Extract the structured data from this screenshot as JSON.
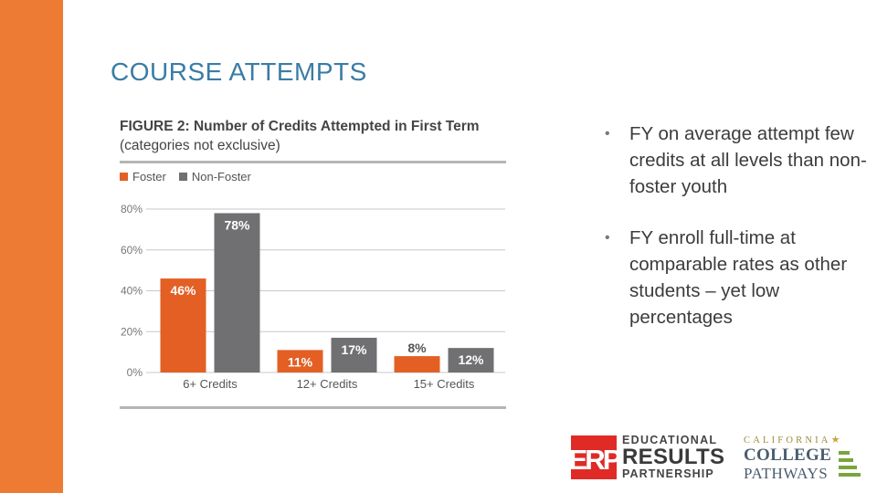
{
  "slide": {
    "title": "COURSE ATTEMPTS",
    "bullets": [
      "FY on average attempt few credits at all levels than non-foster youth",
      "FY enroll full-time at comparable rates as other students – yet low percentages"
    ]
  },
  "colors": {
    "accent_bar": "#ee7b34",
    "foster": "#e35f24",
    "non_foster": "#707073",
    "title": "#3a7ca5"
  },
  "chart_data": {
    "type": "bar",
    "title": "FIGURE 2: Number of Credits Attempted in First Term",
    "subtitle": "(categories not exclusive)",
    "categories": [
      "6+ Credits",
      "12+ Credits",
      "15+ Credits"
    ],
    "series": [
      {
        "name": "Foster",
        "values": [
          46,
          11,
          8
        ],
        "labels": [
          "46%",
          "11%",
          "8%"
        ]
      },
      {
        "name": "Non-Foster",
        "values": [
          78,
          17,
          12
        ],
        "labels": [
          "78%",
          "17%",
          "12%"
        ]
      }
    ],
    "yticks": [
      "80%",
      "60%",
      "40%",
      "20%",
      "0%"
    ],
    "ylim": [
      0,
      80
    ],
    "grid": true,
    "legend": "top-left"
  },
  "logos": {
    "erp": {
      "mark": "ERP",
      "line1": "EDUCATIONAL",
      "line2": "RESULTS",
      "line3": "PARTNERSHIP"
    },
    "ccp": {
      "line1": "CALIFORNIA",
      "line2": "COLLEGE",
      "line3": "PATHWAYS"
    }
  }
}
